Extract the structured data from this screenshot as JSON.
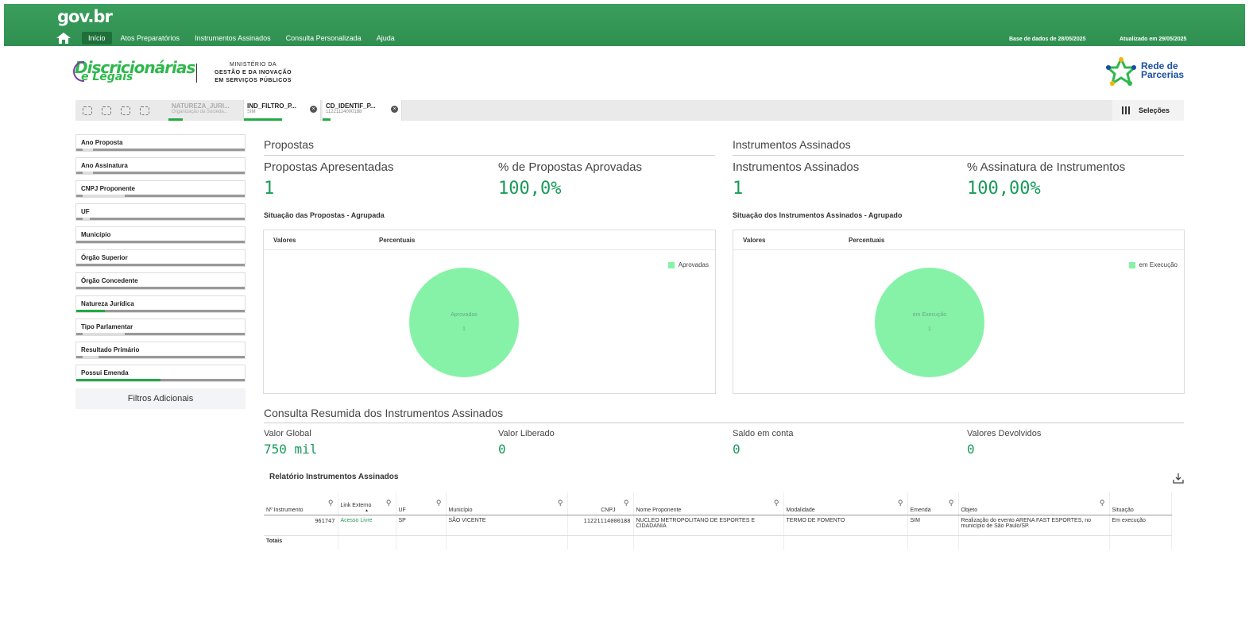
{
  "header": {
    "logo": "gov.br",
    "nav": [
      {
        "label": "Início",
        "active": true
      },
      {
        "label": "Atos Preparatórios",
        "active": false
      },
      {
        "label": "Instrumentos Assinados",
        "active": false
      },
      {
        "label": "Consulta Personalizada",
        "active": false
      },
      {
        "label": "Ajuda",
        "active": false
      }
    ],
    "base_dados": "Base de dados de 28/05/2025",
    "atualizado": "Atualizado em 29/05/2025"
  },
  "brand": {
    "line1": "Discricionárias",
    "line2": "e Legais",
    "ministry_l1": "MINISTÉRIO DA",
    "ministry_l2": "GESTÃO E DA INOVAÇÃO",
    "ministry_l3": "EM SERVIÇOS PÚBLICOS",
    "rede_l1": "Rede de",
    "rede_l2": "Parcerias"
  },
  "selections": {
    "chips": [
      {
        "title": "NATUREZA_JURI...",
        "value": "Organização da Socieda..."
      },
      {
        "title": "IND_FILTRO_P...",
        "value": "SIM"
      },
      {
        "title": "CD_IDENTIF_P...",
        "value": "11221114000188"
      }
    ],
    "label": "Seleções"
  },
  "filters": [
    {
      "label": "Ano Proposta",
      "green": 0,
      "white": 0.06
    },
    {
      "label": "Ano Assinatura",
      "green": 0,
      "white": 0.06
    },
    {
      "label": "CNPJ Proponente",
      "green": 0,
      "white": 0.25
    },
    {
      "label": "UF",
      "green": 0,
      "white": 0.04
    },
    {
      "label": "Município",
      "green": 0,
      "white": 0
    },
    {
      "label": "Órgão Superior",
      "green": 0,
      "white": 0
    },
    {
      "label": "Órgão Concedente",
      "green": 0,
      "white": 0
    },
    {
      "label": "Natureza Jurídica",
      "green": 0.17,
      "white": 0
    },
    {
      "label": "Tipo Parlamentar",
      "green": 0,
      "white": 0.25
    },
    {
      "label": "Resultado Primário",
      "green": 0,
      "white": 0.09
    },
    {
      "label": "Possui Emenda",
      "green": 0.5,
      "white": 0
    }
  ],
  "filtros_adicionais": "Filtros Adicionais",
  "propostas": {
    "title": "Propostas",
    "kpi1_label": "Propostas Apresentadas",
    "kpi1_value": "1",
    "kpi2_label": "% de Propostas Aprovadas",
    "kpi2_value": "100,0%",
    "chart_title": "Situação das Propostas - Agrupada",
    "tab1": "Valores",
    "tab2": "Percentuais",
    "legend": "Aprovadas",
    "slice_label": "Aprovadas",
    "slice_value": "1"
  },
  "instrumentos": {
    "title": "Instrumentos Assinados",
    "kpi1_label": "Instrumentos Assinados",
    "kpi1_value": "1",
    "kpi2_label": "% Assinatura de Instrumentos",
    "kpi2_value": "100,00%",
    "chart_title": "Situação dos Instrumentos Assinados - Agrupado",
    "tab1": "Valores",
    "tab2": "Percentuais",
    "legend": "em Execução",
    "slice_label": "em Execução",
    "slice_value": "1"
  },
  "chart_data": [
    {
      "type": "pie",
      "title": "Situação das Propostas - Agrupada",
      "categories": [
        "Aprovadas"
      ],
      "values": [
        1
      ],
      "colors": [
        "#86f2a8"
      ]
    },
    {
      "type": "pie",
      "title": "Situação dos Instrumentos Assinados - Agrupado",
      "categories": [
        "em Execução"
      ],
      "values": [
        1
      ],
      "colors": [
        "#86f2a8"
      ]
    }
  ],
  "resumo": {
    "title": "Consulta Resumida dos Instrumentos Assinados",
    "items": [
      {
        "label": "Valor Global",
        "value": "750 mil"
      },
      {
        "label": "Valor Liberado",
        "value": "0"
      },
      {
        "label": "Saldo em conta",
        "value": "0"
      },
      {
        "label": "Valores Devolvidos",
        "value": "0"
      }
    ]
  },
  "relatorio": {
    "title": "Relatório Instrumentos Assinados",
    "columns": [
      "Nº Instrumento",
      "Link Externo",
      "UF",
      "Município",
      "CNPJ",
      "Nome Proponente",
      "Modalidade",
      "Emenda",
      "Objeto",
      "Situação"
    ],
    "row": [
      "961747",
      "Acesso Livre",
      "SP",
      "SÃO VICENTE",
      "11221114000188",
      "NUCLEO METROPOLITANO DE ESPORTES E CIDADANIA",
      "TERMO DE FOMENTO",
      "SIM",
      "Realização do evento ARENA FAST ESPORTES, no município de São Paulo/SP.",
      "Em execução"
    ],
    "totals_label": "Totais"
  },
  "colors": {
    "header_green": "#2f8f50",
    "accent_green": "#22aa44",
    "kpi_green": "#1a9a5a",
    "pie_green": "#86f2a8"
  }
}
